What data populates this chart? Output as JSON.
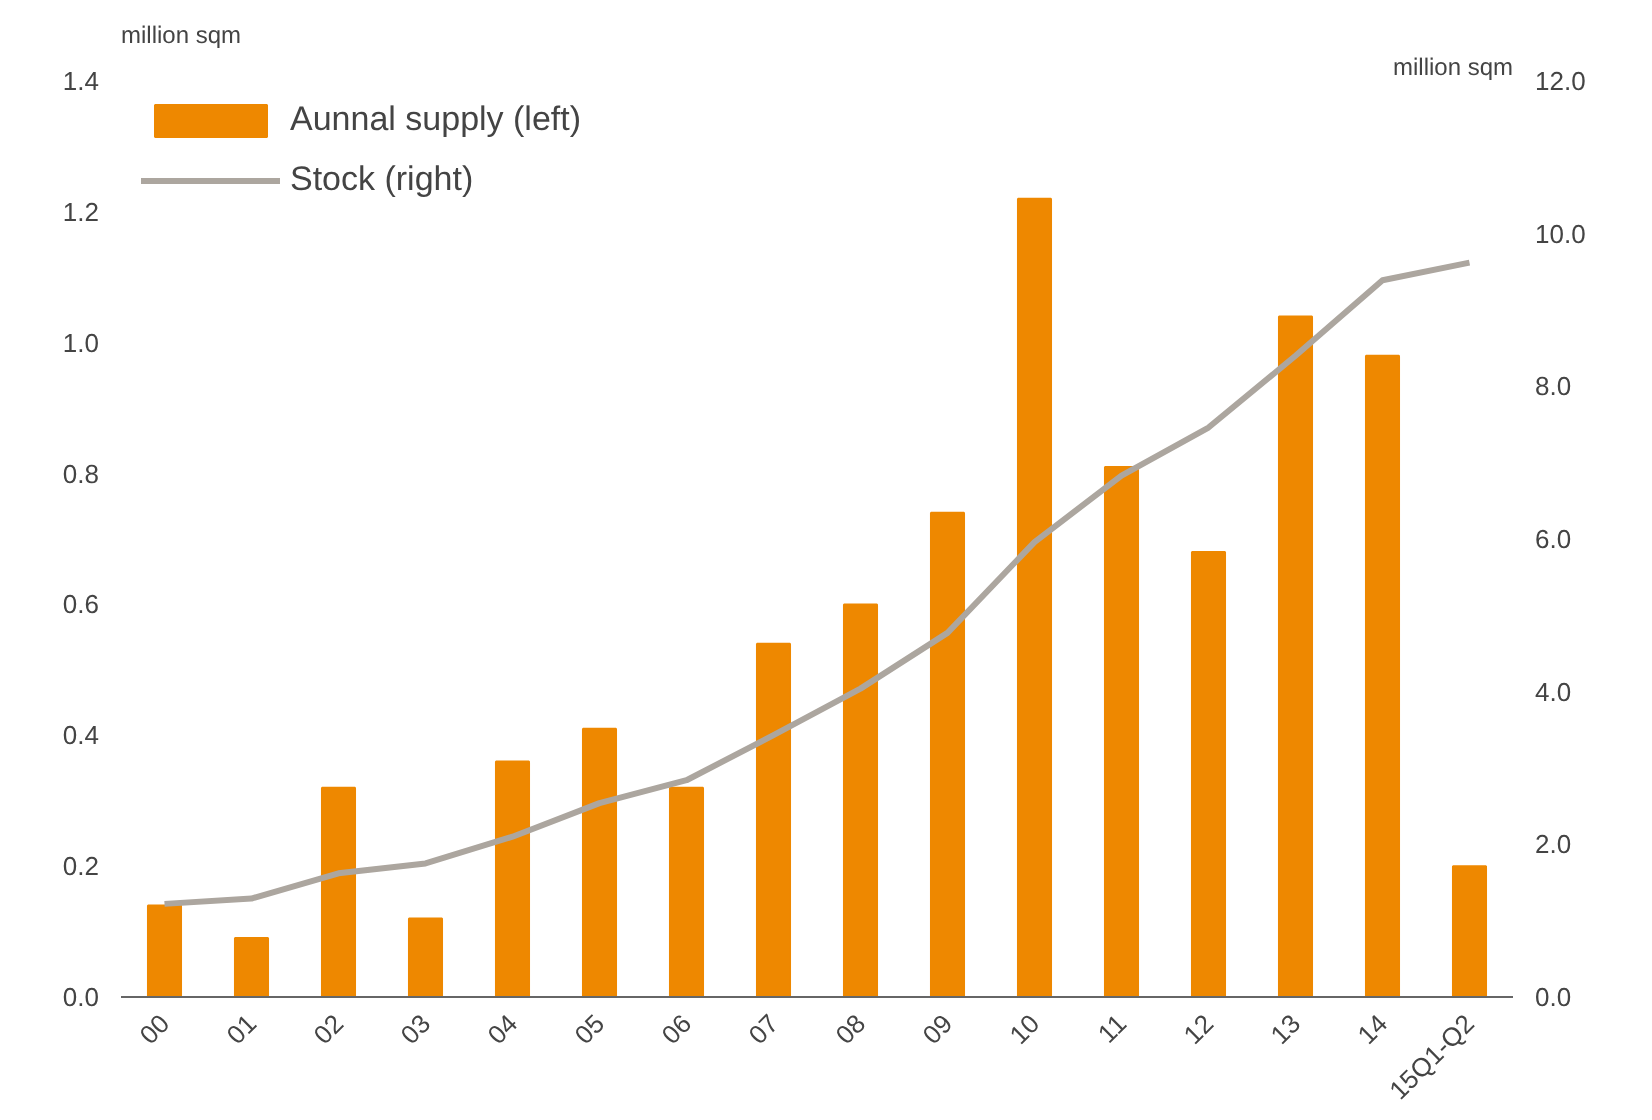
{
  "chart_data": {
    "type": "bar",
    "ylabel": "million sqm",
    "y2label": "million sqm",
    "categories": [
      "00",
      "01",
      "02",
      "03",
      "04",
      "05",
      "06",
      "07",
      "08",
      "09",
      "10",
      "11",
      "12",
      "13",
      "14",
      "15Q1-Q2"
    ],
    "series": [
      {
        "name": "Aunnal supply (left)",
        "color": "#ee8800",
        "values": [
          0.14,
          0.09,
          0.32,
          0.12,
          0.36,
          0.41,
          0.32,
          0.54,
          0.6,
          0.74,
          1.22,
          0.81,
          0.68,
          1.04,
          0.98,
          0.2
        ]
      },
      {
        "name": "Stock (right)",
        "type": "line",
        "axis": "y2",
        "color": "#aca69f",
        "values": [
          1.22,
          1.29,
          1.62,
          1.75,
          2.1,
          2.54,
          2.84,
          3.43,
          4.04,
          4.77,
          5.96,
          6.83,
          7.46,
          8.4,
          9.39,
          9.62
        ]
      }
    ],
    "ylim": [
      0,
      1.4
    ],
    "yticks": [
      {
        "value": 0,
        "label": "0.0"
      },
      {
        "value": 0.2,
        "label": "0.2"
      },
      {
        "value": 0.4,
        "label": "0.4"
      },
      {
        "value": 0.6,
        "label": "0.6"
      },
      {
        "value": 0.8,
        "label": "0.8"
      },
      {
        "value": 1.0,
        "label": "1.0"
      },
      {
        "value": 1.2,
        "label": "1.2"
      },
      {
        "value": 1.4,
        "label": "1.4"
      }
    ],
    "y2lim": [
      0,
      12
    ],
    "y2ticks": [
      {
        "value": 0,
        "label": "0.0"
      },
      {
        "value": 2,
        "label": "2.0"
      },
      {
        "value": 4,
        "label": "4.0"
      },
      {
        "value": 6,
        "label": "6.0"
      },
      {
        "value": 8,
        "label": "8.0"
      },
      {
        "value": 10,
        "label": "10.0"
      },
      {
        "value": 12,
        "label": "12.0"
      }
    ],
    "grid": false,
    "legend": "top left"
  }
}
